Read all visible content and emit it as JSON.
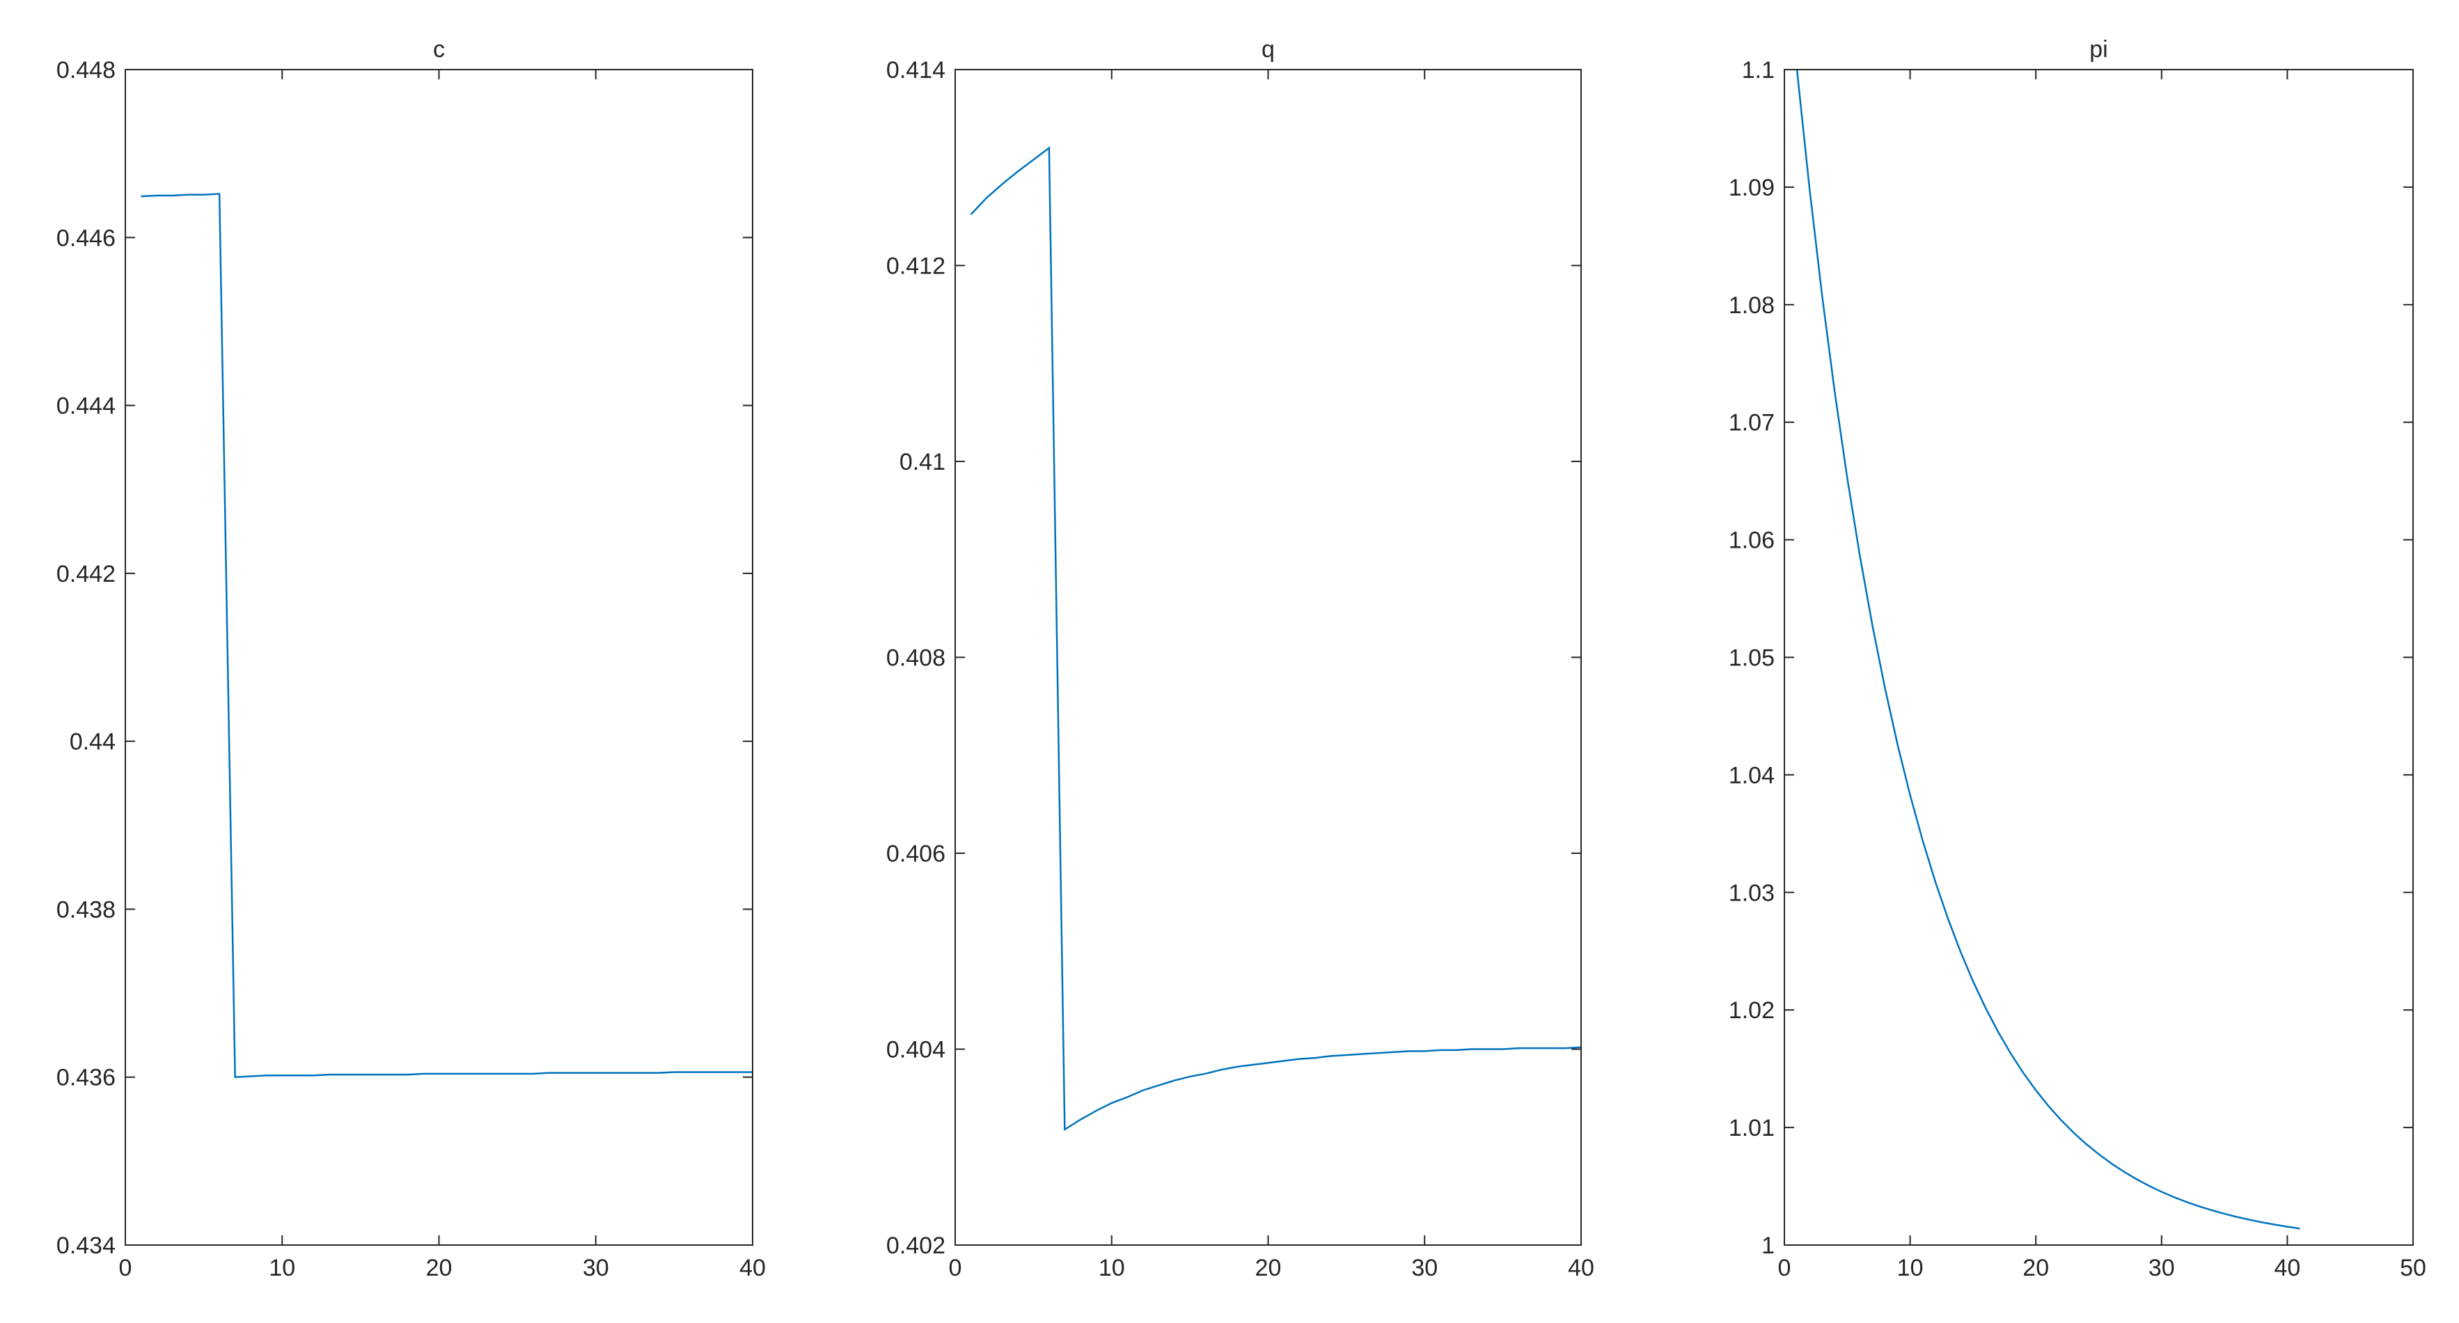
{
  "chart_data": [
    {
      "type": "line",
      "title": "c",
      "x": [
        1,
        2,
        3,
        4,
        5,
        6,
        7,
        8,
        9,
        10,
        11,
        12,
        13,
        14,
        15,
        16,
        17,
        18,
        19,
        20,
        21,
        22,
        23,
        24,
        25,
        26,
        27,
        28,
        29,
        30,
        31,
        32,
        33,
        34,
        35,
        36,
        37,
        38,
        39,
        40
      ],
      "series": [
        {
          "color": "#0072bd",
          "values": [
            0.44649,
            0.4465,
            0.4465,
            0.44651,
            0.44651,
            0.44652,
            0.436,
            0.43601,
            0.43602,
            0.43602,
            0.43602,
            0.43602,
            0.43603,
            0.43603,
            0.43603,
            0.43603,
            0.43603,
            0.43603,
            0.43604,
            0.43604,
            0.43604,
            0.43604,
            0.43604,
            0.43604,
            0.43604,
            0.43604,
            0.43605,
            0.43605,
            0.43605,
            0.43605,
            0.43605,
            0.43605,
            0.43605,
            0.43605,
            0.43606,
            0.43606,
            0.43606,
            0.43606,
            0.43606,
            0.43606
          ]
        }
      ],
      "xlim": [
        0,
        40
      ],
      "xticks": [
        0,
        10,
        20,
        30,
        40
      ],
      "ylim": [
        0.434,
        0.448
      ],
      "yticks": [
        0.434,
        0.436,
        0.438,
        0.44,
        0.442,
        0.444,
        0.446,
        0.448
      ]
    },
    {
      "type": "line",
      "title": "q",
      "x": [
        1,
        2,
        3,
        4,
        5,
        6,
        7,
        8,
        9,
        10,
        11,
        12,
        13,
        14,
        15,
        16,
        17,
        18,
        19,
        20,
        21,
        22,
        23,
        24,
        25,
        26,
        27,
        28,
        29,
        30,
        31,
        32,
        33,
        34,
        35,
        36,
        37,
        38,
        39,
        40
      ],
      "series": [
        {
          "color": "#0072bd",
          "values": [
            0.41252,
            0.41269,
            0.41283,
            0.41296,
            0.41308,
            0.4132,
            0.40318,
            0.40328,
            0.40337,
            0.40345,
            0.40351,
            0.40358,
            0.40363,
            0.40368,
            0.40372,
            0.40375,
            0.40379,
            0.40382,
            0.40384,
            0.40386,
            0.40388,
            0.4039,
            0.40391,
            0.40393,
            0.40394,
            0.40395,
            0.40396,
            0.40397,
            0.40398,
            0.40398,
            0.40399,
            0.40399,
            0.404,
            0.404,
            0.404,
            0.40401,
            0.40401,
            0.40401,
            0.40401,
            0.40402
          ]
        }
      ],
      "xlim": [
        0,
        40
      ],
      "xticks": [
        0,
        10,
        20,
        30,
        40
      ],
      "ylim": [
        0.402,
        0.414
      ],
      "yticks": [
        0.402,
        0.404,
        0.406,
        0.408,
        0.41,
        0.412,
        0.414
      ]
    },
    {
      "type": "line",
      "title": "pi",
      "x": [
        1,
        2,
        3,
        4,
        5,
        6,
        7,
        8,
        9,
        10,
        11,
        12,
        13,
        14,
        15,
        16,
        17,
        18,
        19,
        20,
        21,
        22,
        23,
        24,
        25,
        26,
        27,
        28,
        29,
        30,
        31,
        32,
        33,
        34,
        35,
        36,
        37,
        38,
        39,
        40,
        41
      ],
      "series": [
        {
          "color": "#0072bd",
          "values": [
            1.1,
            1.08988,
            1.08078,
            1.07261,
            1.06526,
            1.05866,
            1.05272,
            1.04739,
            1.04259,
            1.03828,
            1.03441,
            1.03093,
            1.0278,
            1.02498,
            1.02245,
            1.02018,
            1.01814,
            1.0163,
            1.01465,
            1.01317,
            1.01184,
            1.01064,
            1.00956,
            1.0086,
            1.00773,
            1.00694,
            1.00624,
            1.00561,
            1.00504,
            1.00453,
            1.00407,
            1.00366,
            1.00329,
            1.00296,
            1.00266,
            1.00239,
            1.00215,
            1.00193,
            1.00174,
            1.00156,
            1.0014
          ]
        }
      ],
      "xlim": [
        0,
        50
      ],
      "xticks": [
        0,
        10,
        20,
        30,
        40,
        50
      ],
      "ylim": [
        1,
        1.1
      ],
      "yticks": [
        1,
        1.01,
        1.02,
        1.03,
        1.04,
        1.05,
        1.06,
        1.07,
        1.08,
        1.09,
        1.1
      ]
    }
  ]
}
